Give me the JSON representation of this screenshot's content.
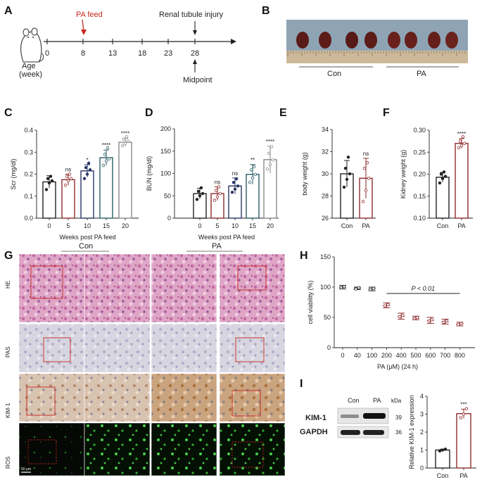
{
  "colors": {
    "black": "#222222",
    "red": "#8e2a2a",
    "navy": "#2a3566",
    "teal": "#2a5e66",
    "gray": "#8a8a8a",
    "accent_red": "#c8251d"
  },
  "panels": {
    "A": {
      "letter": "A",
      "ticks": [
        "0",
        "8",
        "13",
        "18",
        "23",
        "28"
      ],
      "pa_feed": "PA feed",
      "injury": "Renal tubule injury",
      "midpoint": "Midpoint",
      "age_line1": "Age",
      "age_line2": "(week)"
    },
    "B": {
      "letter": "B",
      "con": "Con",
      "pa": "PA"
    },
    "C": {
      "letter": "C"
    },
    "D": {
      "letter": "D"
    },
    "E": {
      "letter": "E"
    },
    "F": {
      "letter": "F"
    },
    "G": {
      "letter": "G",
      "con": "Con",
      "pa": "PA",
      "rows": [
        "HE",
        "PAS",
        "KIM-1",
        "ROS"
      ],
      "scale": "50 μm"
    },
    "H": {
      "letter": "H"
    },
    "I": {
      "letter": "I",
      "blot_con": "Con",
      "blot_pa": "PA",
      "kda": "kDa",
      "band1": "KIM-1",
      "band2": "GAPDH",
      "kda1": "39",
      "kda2": "36"
    }
  },
  "chart_data": [
    {
      "id": "C",
      "type": "bar",
      "ylabel": "Scr (mg/dl)",
      "xlabel": "Weeks post PA feed",
      "categories": [
        "0",
        "5",
        "10",
        "15",
        "20"
      ],
      "values": [
        0.165,
        0.175,
        0.215,
        0.275,
        0.345
      ],
      "errors": [
        0.028,
        0.025,
        0.028,
        0.035,
        0.018
      ],
      "points": [
        [
          0.13,
          0.16,
          0.17,
          0.18,
          0.19
        ],
        [
          0.15,
          0.17,
          0.18,
          0.19,
          0.2
        ],
        [
          0.18,
          0.2,
          0.22,
          0.23,
          0.25
        ],
        [
          0.24,
          0.26,
          0.27,
          0.29,
          0.32
        ],
        [
          0.33,
          0.34,
          0.35,
          0.36,
          0.37
        ]
      ],
      "significance": [
        "",
        "ns",
        "*",
        "****",
        "****"
      ],
      "ylim": [
        0,
        0.4
      ],
      "yticks": [
        "0.0",
        "0.1",
        "0.2",
        "0.3",
        "0.4"
      ]
    },
    {
      "id": "D",
      "type": "bar",
      "ylabel": "BUN (mg/dl)",
      "xlabel": "Weeks post PA feed",
      "categories": [
        "0",
        "5",
        "10",
        "15",
        "20"
      ],
      "values": [
        55,
        55,
        72,
        98,
        131
      ],
      "errors": [
        12,
        15,
        18,
        22,
        30
      ],
      "points": [
        [
          42,
          50,
          55,
          60,
          68
        ],
        [
          40,
          48,
          55,
          62,
          70
        ],
        [
          58,
          65,
          72,
          80,
          88
        ],
        [
          80,
          90,
          98,
          108,
          115
        ],
        [
          110,
          120,
          130,
          145,
          160
        ]
      ],
      "significance": [
        "",
        "ns",
        "ns",
        "**",
        "****"
      ],
      "ylim": [
        0,
        200
      ],
      "yticks": [
        "0",
        "50",
        "100",
        "150",
        "200"
      ]
    },
    {
      "id": "E",
      "type": "bar",
      "ylabel": "body weight (g)",
      "categories": [
        "Con",
        "PA"
      ],
      "values": [
        30.0,
        29.6
      ],
      "errors": [
        1.2,
        1.8
      ],
      "points": [
        [
          28.8,
          29.5,
          30.0,
          30.5,
          31.5
        ],
        [
          27.5,
          28.5,
          29.6,
          30.5,
          31.0
        ]
      ],
      "significance": [
        "",
        "ns"
      ],
      "ylim": [
        26,
        34
      ],
      "yticks": [
        "26",
        "28",
        "30",
        "32",
        "34"
      ]
    },
    {
      "id": "F",
      "type": "bar",
      "ylabel": "Kidney weight (g)",
      "categories": [
        "Con",
        "PA"
      ],
      "values": [
        0.193,
        0.27
      ],
      "errors": [
        0.011,
        0.011
      ],
      "points": [
        [
          0.18,
          0.19,
          0.195,
          0.2,
          0.205
        ],
        [
          0.26,
          0.265,
          0.27,
          0.275,
          0.285
        ]
      ],
      "significance": [
        "",
        "****"
      ],
      "ylim": [
        0.1,
        0.3
      ],
      "yticks": [
        "0.10",
        "0.15",
        "0.20",
        "0.25",
        "0.30"
      ]
    },
    {
      "id": "H",
      "type": "scatter",
      "ylabel": "cell viability (%)",
      "xlabel": "PA (μM) (24 h)",
      "categories": [
        "0",
        "40",
        "100",
        "200",
        "400",
        "500",
        "600",
        "700",
        "800"
      ],
      "values": [
        100,
        98,
        97,
        70,
        52,
        49,
        45,
        43,
        39
      ],
      "errors": [
        3,
        2,
        3,
        4,
        5,
        3,
        5,
        4,
        3
      ],
      "annotation": "P < 0.01",
      "ylim": [
        0,
        150
      ],
      "yticks": [
        "0",
        "50",
        "100",
        "150"
      ]
    },
    {
      "id": "I",
      "type": "bar",
      "ylabel": "Relative KIM-1 expression",
      "categories": [
        "Con",
        "PA"
      ],
      "values": [
        1.0,
        3.03
      ],
      "errors": [
        0.05,
        0.25
      ],
      "points": [
        [
          0.95,
          1.0,
          1.05
        ],
        [
          2.8,
          3.0,
          3.3
        ]
      ],
      "significance": [
        "",
        "***"
      ],
      "ylim": [
        0,
        4
      ],
      "yticks": [
        "0",
        "1",
        "2",
        "3",
        "4"
      ]
    }
  ]
}
